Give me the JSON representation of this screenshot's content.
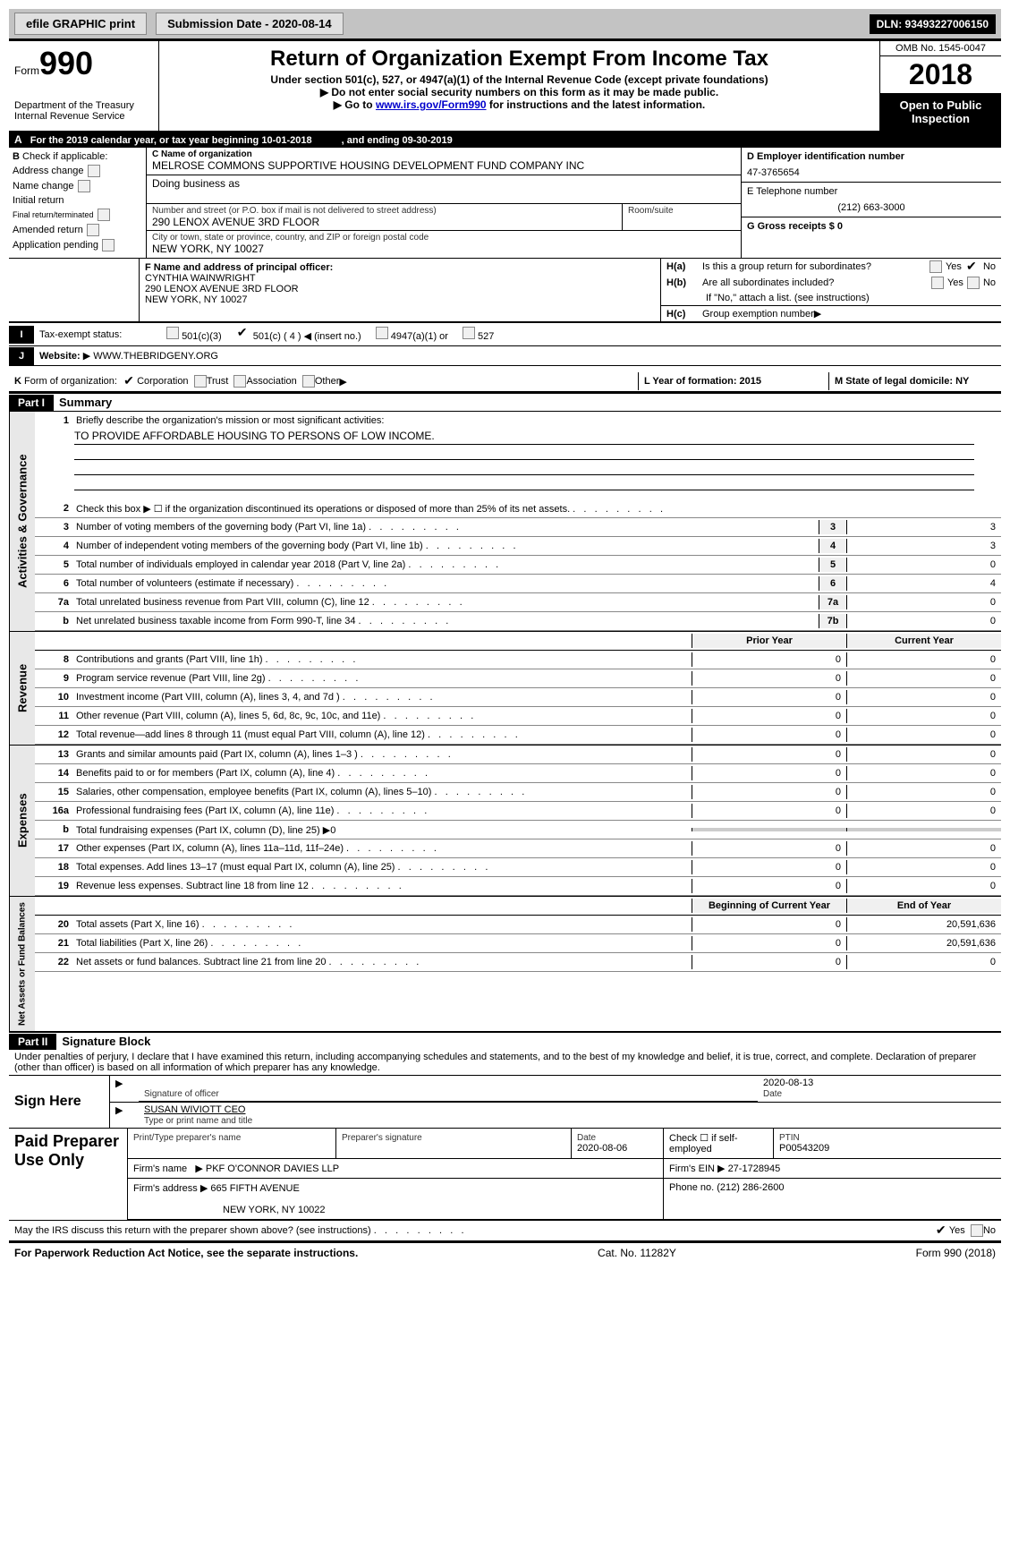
{
  "topbar": {
    "efile_label": "efile GRAPHIC print",
    "submission_label": "Submission Date - 2020-08-14",
    "dln_label": "DLN: 93493227006150"
  },
  "header": {
    "form_prefix": "Form",
    "form_number": "990",
    "dept1": "Department of the Treasury",
    "dept2": "Internal Revenue Service",
    "title": "Return of Organization Exempt From Income Tax",
    "subtitle": "Under section 501(c), 527, or 4947(a)(1) of the Internal Revenue Code (except private foundations)",
    "instruction1": "Do not enter social security numbers on this form as it may be made public.",
    "instruction2_prefix": "Go to ",
    "instruction2_link": "www.irs.gov/Form990",
    "instruction2_suffix": " for instructions and the latest information.",
    "omb": "OMB No. 1545-0047",
    "tax_year": "2018",
    "open_public": "Open to Public Inspection"
  },
  "row_a": {
    "letter": "A",
    "text_left": "For the 2019 calendar year, or tax year beginning 10-01-2018",
    "text_right": ", and ending 09-30-2019"
  },
  "section_b": {
    "letter": "B",
    "label": "Check if applicable:",
    "items": [
      "Address change",
      "Name change",
      "Initial return",
      "Final return/terminated",
      "Amended return",
      "Application pending"
    ]
  },
  "section_c": {
    "name_label": "C Name of organization",
    "name": "MELROSE COMMONS SUPPORTIVE HOUSING DEVELOPMENT FUND COMPANY INC",
    "dba_label": "Doing business as",
    "dba": "",
    "addr_label": "Number and street (or P.O. box if mail is not delivered to street address)",
    "room_label": "Room/suite",
    "addr": "290 LENOX AVENUE 3RD FLOOR",
    "city_label": "City or town, state or province, country, and ZIP or foreign postal code",
    "city": "NEW YORK, NY  10027"
  },
  "section_d": {
    "label": "D Employer identification number",
    "value": "47-3765654",
    "e_label": "E Telephone number",
    "e_value": "(212) 663-3000",
    "g_label": "G Gross receipts $ 0"
  },
  "section_f": {
    "label": "F  Name and address of principal officer:",
    "name": "CYNTHIA WAINWRIGHT",
    "addr": "290 LENOX AVENUE 3RD FLOOR",
    "city": "NEW YORK, NY  10027"
  },
  "section_h": {
    "ha": "H(a)",
    "ha_text": "Is this a group return for subordinates?",
    "hb": "H(b)",
    "hb_text": "Are all subordinates included?",
    "hb_note": "If \"No,\" attach a list. (see instructions)",
    "hc": "H(c)",
    "hc_text": "Group exemption number",
    "yes": "Yes",
    "no": "No"
  },
  "row_i": {
    "letter": "I",
    "label": "Tax-exempt status:",
    "opts": [
      "501(c)(3)",
      "501(c) ( 4 )",
      "(insert no.)",
      "4947(a)(1) or",
      "527"
    ]
  },
  "row_j": {
    "letter": "J",
    "label": "Website:",
    "value": "WWW.THEBRIDGENY.ORG"
  },
  "row_k": {
    "letter": "K",
    "label": "Form of organization:",
    "opts": [
      "Corporation",
      "Trust",
      "Association",
      "Other"
    ]
  },
  "row_lm": {
    "l_label": "L Year of formation: 2015",
    "m_label": "M State of legal domicile: NY"
  },
  "part1": {
    "header": "Part I",
    "title": "Summary"
  },
  "mission": {
    "line1_num": "1",
    "line1_text": "Briefly describe the organization's mission or most significant activities:",
    "mission_text": "TO PROVIDE AFFORDABLE HOUSING TO PERSONS OF LOW INCOME."
  },
  "governance_lines": [
    {
      "num": "2",
      "desc": "Check this box ▶ ☐ if the organization discontinued its operations or disposed of more than 25% of its net assets.",
      "ln": "",
      "val": ""
    },
    {
      "num": "3",
      "desc": "Number of voting members of the governing body (Part VI, line 1a)",
      "ln": "3",
      "val": "3"
    },
    {
      "num": "4",
      "desc": "Number of independent voting members of the governing body (Part VI, line 1b)",
      "ln": "4",
      "val": "3"
    },
    {
      "num": "5",
      "desc": "Total number of individuals employed in calendar year 2018 (Part V, line 2a)",
      "ln": "5",
      "val": "0"
    },
    {
      "num": "6",
      "desc": "Total number of volunteers (estimate if necessary)",
      "ln": "6",
      "val": "4"
    },
    {
      "num": "7a",
      "desc": "Total unrelated business revenue from Part VIII, column (C), line 12",
      "ln": "7a",
      "val": "0"
    },
    {
      "num": "b",
      "desc": "Net unrelated business taxable income from Form 990-T, line 34",
      "ln": "7b",
      "val": "0"
    }
  ],
  "py_header": "Prior Year",
  "cy_header": "Current Year",
  "revenue_lines": [
    {
      "num": "8",
      "desc": "Contributions and grants (Part VIII, line 1h)",
      "py": "0",
      "cy": "0"
    },
    {
      "num": "9",
      "desc": "Program service revenue (Part VIII, line 2g)",
      "py": "0",
      "cy": "0"
    },
    {
      "num": "10",
      "desc": "Investment income (Part VIII, column (A), lines 3, 4, and 7d )",
      "py": "0",
      "cy": "0"
    },
    {
      "num": "11",
      "desc": "Other revenue (Part VIII, column (A), lines 5, 6d, 8c, 9c, 10c, and 11e)",
      "py": "0",
      "cy": "0"
    },
    {
      "num": "12",
      "desc": "Total revenue—add lines 8 through 11 (must equal Part VIII, column (A), line 12)",
      "py": "0",
      "cy": "0"
    }
  ],
  "expense_lines": [
    {
      "num": "13",
      "desc": "Grants and similar amounts paid (Part IX, column (A), lines 1–3 )",
      "py": "0",
      "cy": "0"
    },
    {
      "num": "14",
      "desc": "Benefits paid to or for members (Part IX, column (A), line 4)",
      "py": "0",
      "cy": "0"
    },
    {
      "num": "15",
      "desc": "Salaries, other compensation, employee benefits (Part IX, column (A), lines 5–10)",
      "py": "0",
      "cy": "0"
    },
    {
      "num": "16a",
      "desc": "Professional fundraising fees (Part IX, column (A), line 11e)",
      "py": "0",
      "cy": "0"
    },
    {
      "num": "b",
      "desc": "Total fundraising expenses (Part IX, column (D), line 25) ▶0",
      "py": "",
      "cy": ""
    },
    {
      "num": "17",
      "desc": "Other expenses (Part IX, column (A), lines 11a–11d, 11f–24e)",
      "py": "0",
      "cy": "0"
    },
    {
      "num": "18",
      "desc": "Total expenses. Add lines 13–17 (must equal Part IX, column (A), line 25)",
      "py": "0",
      "cy": "0"
    },
    {
      "num": "19",
      "desc": "Revenue less expenses. Subtract line 18 from line 12",
      "py": "0",
      "cy": "0"
    }
  ],
  "boy_header": "Beginning of Current Year",
  "eoy_header": "End of Year",
  "netassets_lines": [
    {
      "num": "20",
      "desc": "Total assets (Part X, line 16)",
      "py": "0",
      "cy": "20,591,636"
    },
    {
      "num": "21",
      "desc": "Total liabilities (Part X, line 26)",
      "py": "0",
      "cy": "20,591,636"
    },
    {
      "num": "22",
      "desc": "Net assets or fund balances. Subtract line 21 from line 20",
      "py": "0",
      "cy": "0"
    }
  ],
  "sidebar_labels": {
    "governance": "Activities & Governance",
    "revenue": "Revenue",
    "expenses": "Expenses",
    "netassets": "Net Assets or Fund Balances"
  },
  "part2": {
    "header": "Part II",
    "title": "Signature Block",
    "perjury": "Under penalties of perjury, I declare that I have examined this return, including accompanying schedules and statements, and to the best of my knowledge and belief, it is true, correct, and complete. Declaration of preparer (other than officer) is based on all information of which preparer has any knowledge."
  },
  "sign": {
    "label": "Sign Here",
    "sig_label": "Signature of officer",
    "date_label": "Date",
    "date": "2020-08-13",
    "name": "SUSAN WIVIOTT CEO",
    "name_label": "Type or print name and title"
  },
  "preparer": {
    "label": "Paid Preparer Use Only",
    "print_label": "Print/Type preparer's name",
    "sig_label": "Preparer's signature",
    "date_label": "Date",
    "date": "2020-08-06",
    "check_label": "Check ☐ if self-employed",
    "ptin_label": "PTIN",
    "ptin": "P00543209",
    "firm_name_label": "Firm's name",
    "firm_name": "PKF O'CONNOR DAVIES LLP",
    "firm_ein_label": "Firm's EIN",
    "firm_ein": "27-1728945",
    "firm_addr_label": "Firm's address",
    "firm_addr1": "665 FIFTH AVENUE",
    "firm_addr2": "NEW YORK, NY  10022",
    "phone_label": "Phone no. (212) 286-2600"
  },
  "footer": {
    "discuss": "May the IRS discuss this return with the preparer shown above? (see instructions)",
    "yes": "Yes",
    "no": "No",
    "paperwork": "For Paperwork Reduction Act Notice, see the separate instructions.",
    "catno": "Cat. No. 11282Y",
    "form": "Form 990 (2018)"
  },
  "colors": {
    "black": "#000000",
    "grey_bg": "#c3c3c3",
    "light_grey": "#e8e8e8",
    "link": "#0000cc"
  }
}
